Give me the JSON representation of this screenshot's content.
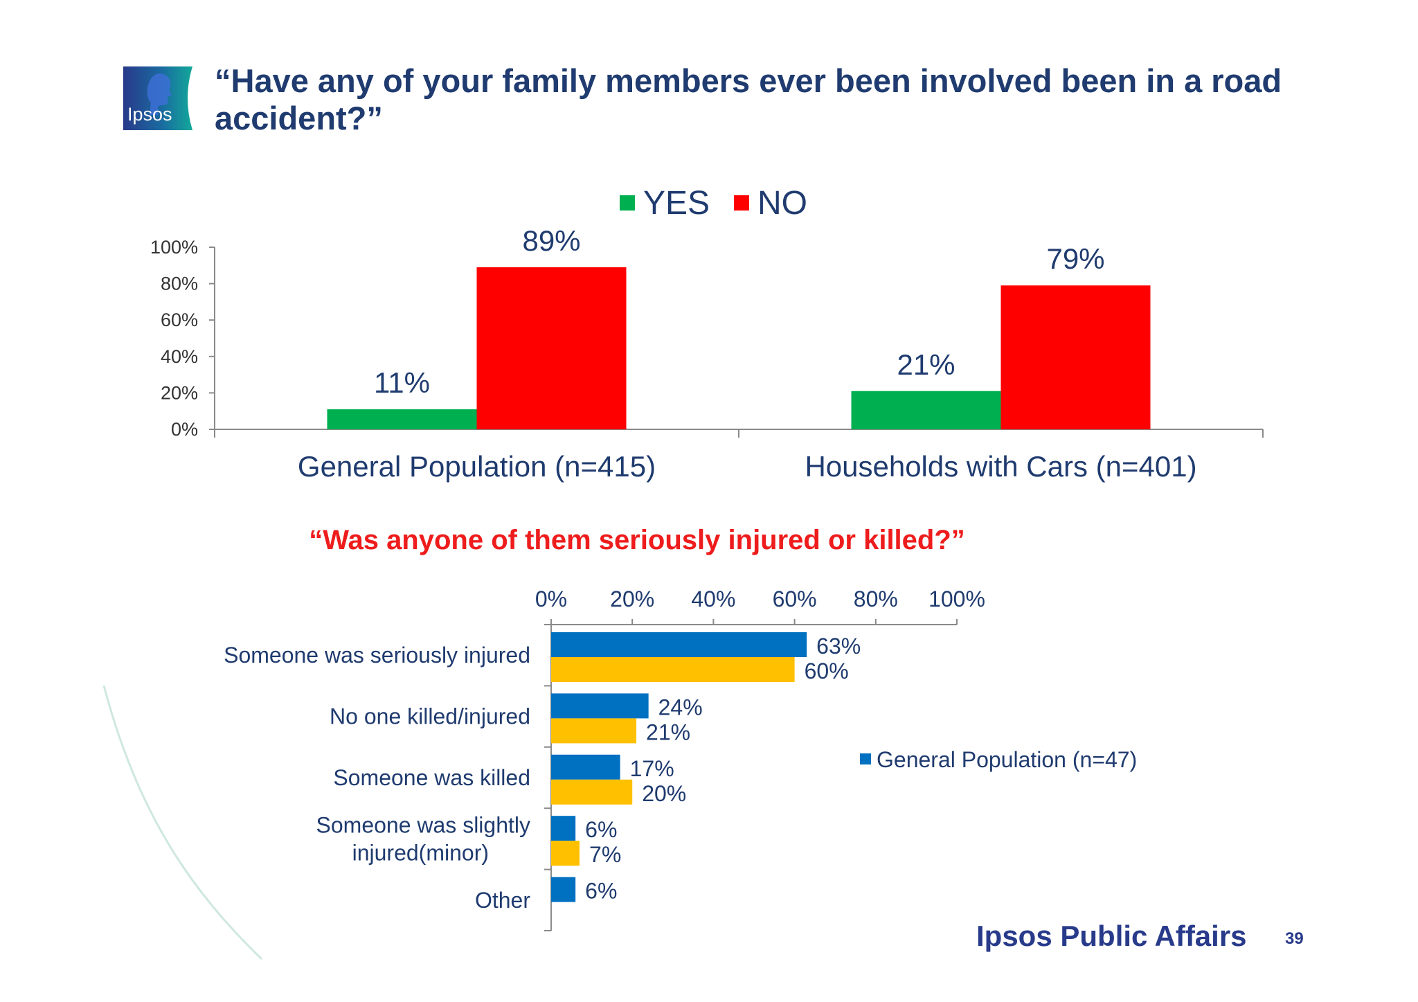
{
  "header": {
    "title": "“Have any of your family members ever been involved been in a road accident?”",
    "logo_text": "Ipsos"
  },
  "footer": {
    "brand": "Ipsos Public Affairs",
    "page_number": "39"
  },
  "colors": {
    "title": "#1f3b6f",
    "yes": "#00b050",
    "no": "#ff0000",
    "series_blue": "#0070c0",
    "series_yellow": "#ffc000",
    "subtitle": "#ee1c1c"
  },
  "chart_data": [
    {
      "type": "bar",
      "orientation": "vertical",
      "categories": [
        "General Population (n=415)",
        "Households with Cars (n=401)"
      ],
      "series": [
        {
          "name": "YES",
          "values": [
            11,
            21
          ],
          "labels": [
            "11%",
            "21%"
          ]
        },
        {
          "name": "NO",
          "values": [
            89,
            79
          ],
          "labels": [
            "89%",
            "79%"
          ]
        }
      ],
      "ylim": [
        0,
        100
      ],
      "yticks": [
        "0%",
        "20%",
        "40%",
        "60%",
        "80%",
        "100%"
      ],
      "legend_position": "top",
      "grid": false
    },
    {
      "type": "bar",
      "orientation": "horizontal",
      "title": "“Was anyone of them seriously injured or killed?”",
      "categories": [
        "Someone was seriously injured",
        "No one killed/injured",
        "Someone was killed",
        "Someone was slightly injured(minor)",
        "Other"
      ],
      "category_lines": [
        [
          "Someone was seriously injured"
        ],
        [
          "No one killed/injured"
        ],
        [
          "Someone was killed"
        ],
        [
          "Someone was slightly",
          "injured(minor)"
        ],
        [
          "Other"
        ]
      ],
      "series": [
        {
          "name": "General Population (n=47)",
          "values": [
            63,
            24,
            17,
            6,
            6
          ],
          "labels": [
            "63%",
            "24%",
            "17%",
            "6%",
            "6%"
          ]
        },
        {
          "values": [
            60,
            21,
            20,
            7,
            null
          ],
          "labels": [
            "60%",
            "21%",
            "20%",
            "7%",
            ""
          ]
        }
      ],
      "xlim": [
        0,
        100
      ],
      "xticks": [
        "0%",
        "20%",
        "40%",
        "60%",
        "80%",
        "100%"
      ],
      "legend_position": "right",
      "grid": false
    }
  ]
}
